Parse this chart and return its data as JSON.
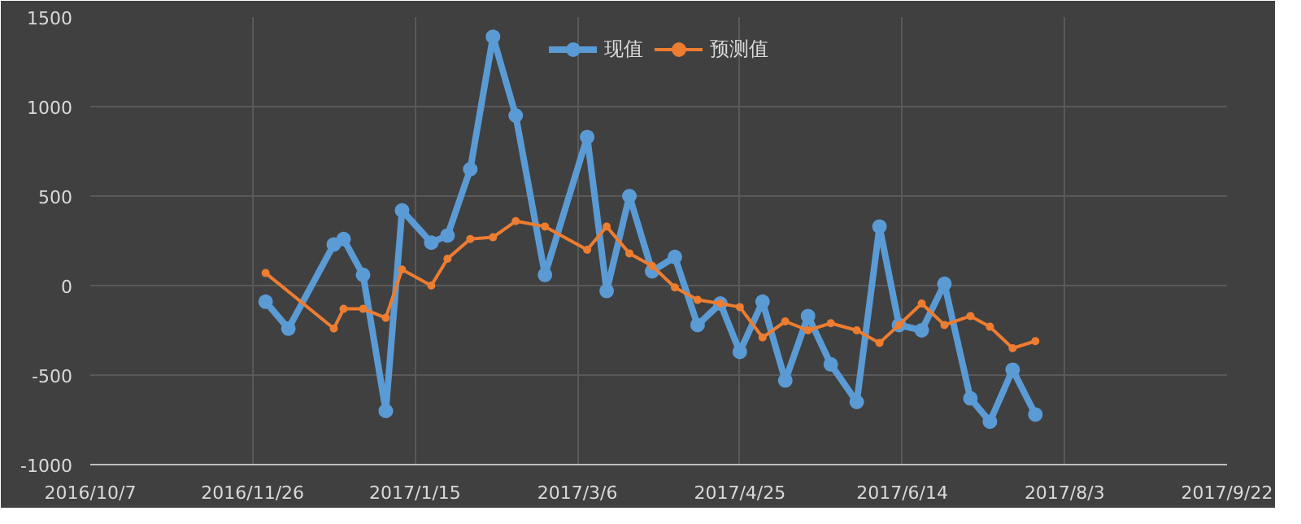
{
  "chart_data": {
    "type": "line",
    "legend": "top",
    "grid": true,
    "marker": "circle",
    "line_style": "solid",
    "xlim": [
      "2016-10-07",
      "2017-09-22"
    ],
    "xticks": [
      {
        "value": "2016-10-07",
        "label": "2016/10/7"
      },
      {
        "value": "2016-11-26",
        "label": "2016/11/26"
      },
      {
        "value": "2017-01-15",
        "label": "2017/1/15"
      },
      {
        "value": "2017-03-06",
        "label": "2017/3/6"
      },
      {
        "value": "2017-04-25",
        "label": "2017/4/25"
      },
      {
        "value": "2017-06-14",
        "label": "2017/6/14"
      },
      {
        "value": "2017-08-03",
        "label": "2017/8/3"
      },
      {
        "value": "2017-09-22",
        "label": "2017/9/22"
      }
    ],
    "ylim": [
      -1000,
      1500
    ],
    "yticks": [
      -1000,
      -500,
      0,
      500,
      1000,
      1500
    ],
    "series": [
      {
        "name": "现值",
        "color": "#5b9bd5",
        "x": [
          "2016-11-30",
          "2016-12-07",
          "2016-12-21",
          "2016-12-24",
          "2016-12-30",
          "2017-01-06",
          "2017-01-11",
          "2017-01-20",
          "2017-01-25",
          "2017-02-01",
          "2017-02-08",
          "2017-02-15",
          "2017-02-24",
          "2017-03-09",
          "2017-03-15",
          "2017-03-22",
          "2017-03-29",
          "2017-04-05",
          "2017-04-12",
          "2017-04-19",
          "2017-04-25",
          "2017-05-02",
          "2017-05-09",
          "2017-05-16",
          "2017-05-23",
          "2017-05-31",
          "2017-06-07",
          "2017-06-13",
          "2017-06-20",
          "2017-06-27",
          "2017-07-05",
          "2017-07-11",
          "2017-07-18",
          "2017-07-25"
        ],
        "values": [
          -90,
          -240,
          230,
          260,
          60,
          -700,
          420,
          240,
          280,
          650,
          1390,
          950,
          60,
          830,
          -30,
          500,
          80,
          160,
          -220,
          -100,
          -370,
          -90,
          -530,
          -170,
          -440,
          -650,
          330,
          -220,
          -250,
          10,
          -630,
          -760,
          -470,
          -720
        ]
      },
      {
        "name": "预测值",
        "color": "#ed7d31",
        "x": [
          "2016-11-30",
          "2016-12-21",
          "2016-12-24",
          "2016-12-30",
          "2017-01-06",
          "2017-01-11",
          "2017-01-20",
          "2017-01-25",
          "2017-02-01",
          "2017-02-08",
          "2017-02-15",
          "2017-02-24",
          "2017-03-09",
          "2017-03-15",
          "2017-03-22",
          "2017-03-29",
          "2017-04-05",
          "2017-04-12",
          "2017-04-19",
          "2017-04-25",
          "2017-05-02",
          "2017-05-09",
          "2017-05-16",
          "2017-05-23",
          "2017-05-31",
          "2017-06-07",
          "2017-06-13",
          "2017-06-20",
          "2017-06-27",
          "2017-07-05",
          "2017-07-11",
          "2017-07-18",
          "2017-07-25"
        ],
        "values": [
          70,
          -240,
          -130,
          -130,
          -180,
          90,
          0,
          150,
          260,
          270,
          360,
          330,
          200,
          330,
          180,
          110,
          -10,
          -80,
          -100,
          -120,
          -290,
          -200,
          -250,
          -210,
          -250,
          -320,
          -220,
          -100,
          -220,
          -170,
          -230,
          -350,
          -310
        ]
      }
    ]
  }
}
